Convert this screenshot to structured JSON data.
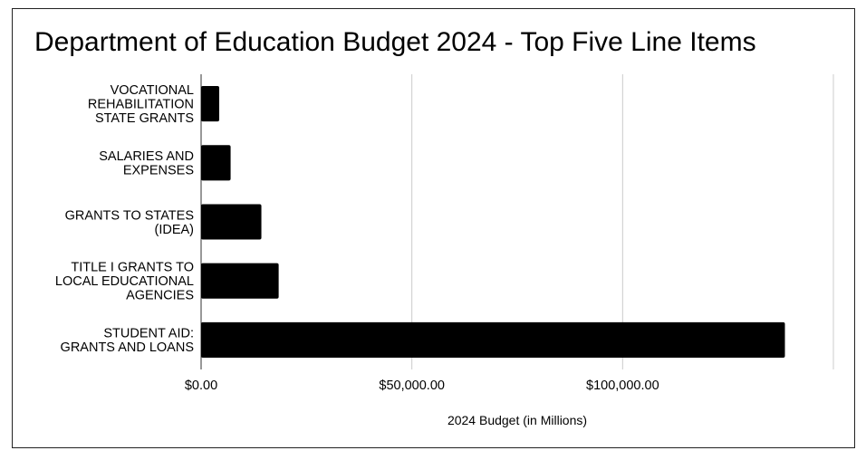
{
  "chart_data": {
    "type": "bar",
    "orientation": "horizontal",
    "title": "Department of Education Budget 2024 - Top Five Line Items",
    "xlabel": "2024 Budget (in Millions)",
    "ylabel": "",
    "categories": [
      [
        "VOCATIONAL",
        "REHABILITATION",
        "STATE GRANTS"
      ],
      [
        "SALARIES AND",
        "EXPENSES"
      ],
      [
        "GRANTS TO STATES",
        "(IDEA)"
      ],
      [
        "TITLE I GRANTS TO",
        "LOCAL EDUCATIONAL",
        "AGENCIES"
      ],
      [
        "STUDENT AID:",
        "GRANTS AND LOANS"
      ]
    ],
    "values": [
      4300,
      7000,
      14300,
      18400,
      138500
    ],
    "xlim": [
      0,
      150000
    ],
    "xticks": [
      0,
      50000,
      100000
    ],
    "xtick_labels": [
      "$0.00",
      "$50,000.00",
      "$100,000.00"
    ],
    "grid": true,
    "bar_color": "#000000"
  }
}
